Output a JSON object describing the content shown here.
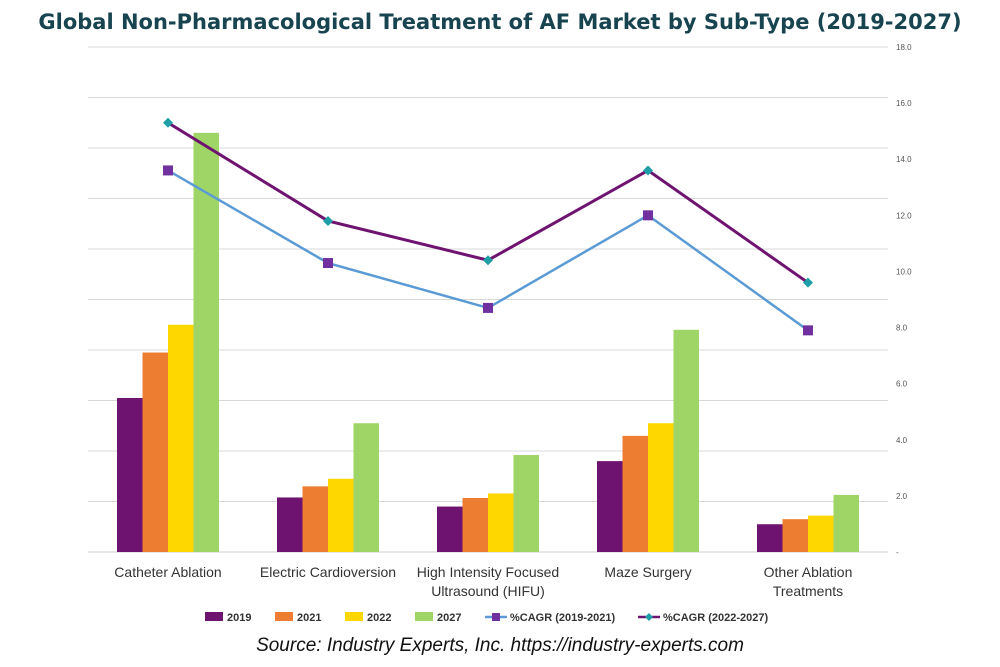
{
  "chart_data": {
    "type": "bar",
    "title": "Global Non-Pharmacological Treatment of AF Market by Sub-Type (2019-2027)",
    "categories": [
      [
        "Catheter Ablation"
      ],
      [
        "Electric Cardioversion"
      ],
      [
        "High Intensity Focused",
        "Ultrasound (HIFU)"
      ],
      [
        "Maze Surgery"
      ],
      [
        "Other Ablation",
        "Treatments"
      ]
    ],
    "ylim": [
      0,
      10
    ],
    "y2lim": [
      0,
      18
    ],
    "y2_ticks": [
      "-",
      "2.0",
      "4.0",
      "6.0",
      "8.0",
      "10.0",
      "12.0",
      "14.0",
      "16.0",
      "18.0"
    ],
    "grid": true,
    "series": [
      {
        "name": "2019",
        "kind": "bar",
        "color": "#6e1470",
        "values": [
          3.05,
          1.08,
          0.9,
          1.8,
          0.55
        ]
      },
      {
        "name": "2021",
        "kind": "bar",
        "color": "#ed7d31",
        "values": [
          3.95,
          1.3,
          1.07,
          2.3,
          0.65
        ]
      },
      {
        "name": "2022",
        "kind": "bar",
        "color": "#ffd700",
        "values": [
          4.5,
          1.45,
          1.16,
          2.55,
          0.72
        ]
      },
      {
        "name": "2027",
        "kind": "bar",
        "color": "#9fd466",
        "values": [
          8.3,
          2.55,
          1.92,
          4.4,
          1.13
        ]
      },
      {
        "name": "%CAGR (2019-2021)",
        "kind": "line",
        "axis": "secondary",
        "color": "#5b9bd5",
        "marker": "square",
        "markerColor": "#7030a0",
        "values": [
          13.6,
          10.3,
          8.7,
          12.0,
          7.9
        ]
      },
      {
        "name": "%CAGR (2022-2027)",
        "kind": "line",
        "axis": "secondary",
        "color": "#6e1470",
        "marker": "diamond",
        "markerColor": "#1f9ea8",
        "values": [
          15.3,
          11.8,
          10.4,
          13.6,
          9.6
        ]
      }
    ],
    "legend_position": "bottom",
    "source": "Source: Industry Experts, Inc. https://industry-experts.com"
  }
}
